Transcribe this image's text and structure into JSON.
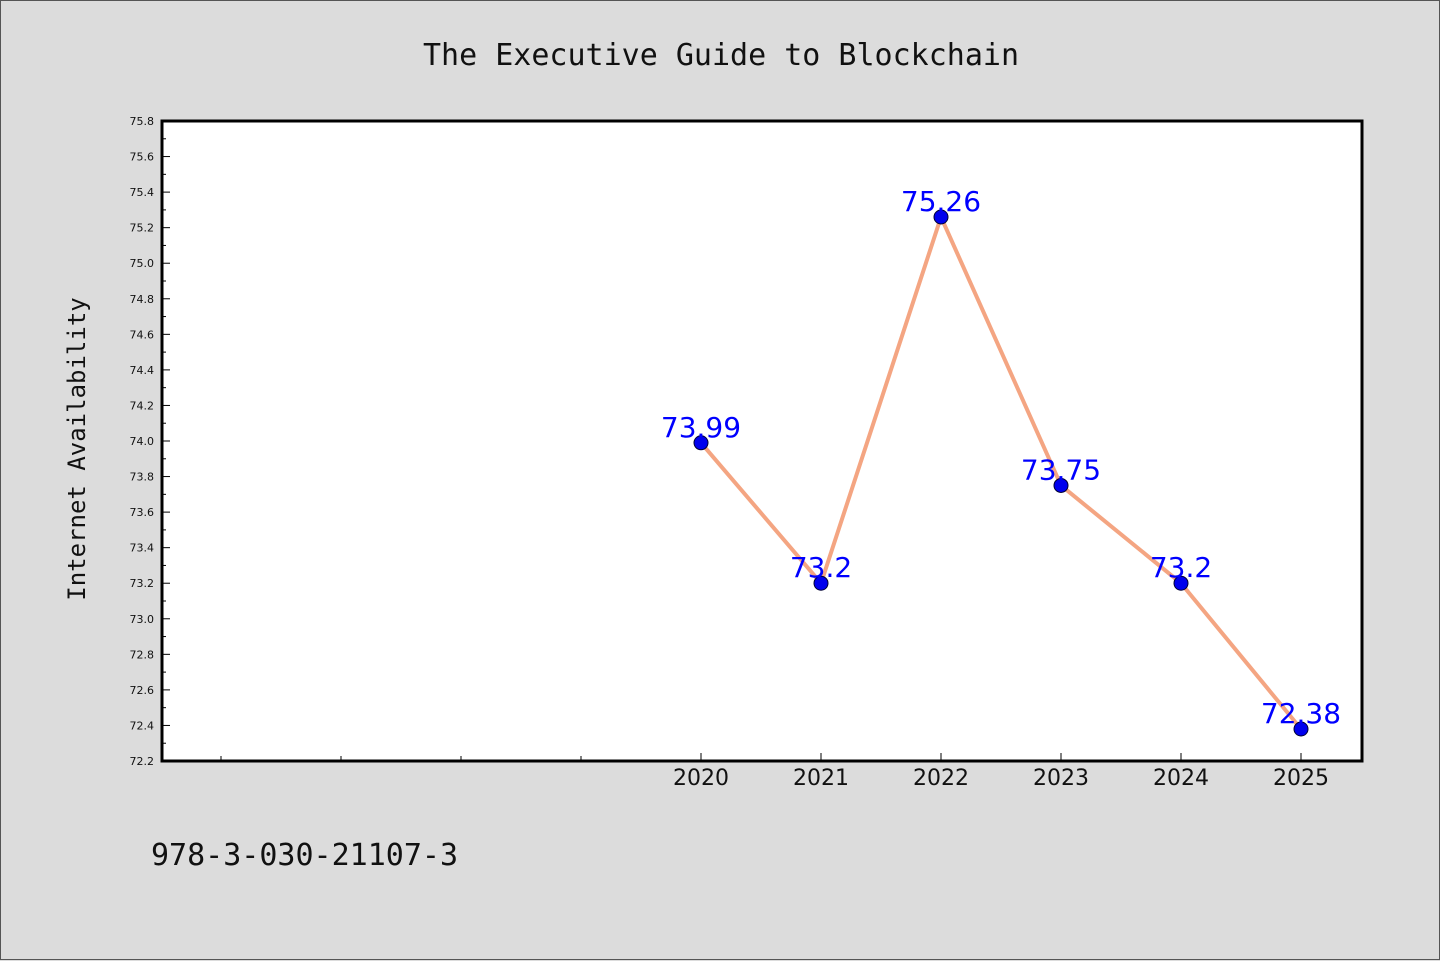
{
  "chart_data": {
    "type": "line",
    "title": "The Executive Guide to Blockchain",
    "xlabel": "",
    "ylabel": "Internet Availability",
    "categories": [
      "2020",
      "2021",
      "2022",
      "2023",
      "2024",
      "2025"
    ],
    "x_minor_ticks_before": 4,
    "series": [
      {
        "values": [
          73.99,
          73.2,
          75.26,
          73.75,
          73.2,
          72.38
        ],
        "labels": [
          "73.99",
          "73.2",
          "75.26",
          "73.75",
          "73.2",
          "72.38"
        ],
        "line_color": "#f4a582",
        "marker_color": "#0000ee"
      }
    ],
    "ylim": [
      72.2,
      75.8
    ],
    "yticks": [
      "72.2",
      "72.4",
      "72.6",
      "72.8",
      "73.0",
      "73.2",
      "73.4",
      "73.6",
      "73.8",
      "74.0",
      "74.2",
      "74.4",
      "74.6",
      "74.8",
      "75.0",
      "75.2",
      "75.4",
      "75.6",
      "75.8"
    ],
    "grid": false,
    "legend": "none",
    "label_color": "#0000ff",
    "plot_background": "#ffffff",
    "page_background": "#dcdcdc"
  },
  "footer": {
    "isbn": "978-3-030-21107-3"
  }
}
